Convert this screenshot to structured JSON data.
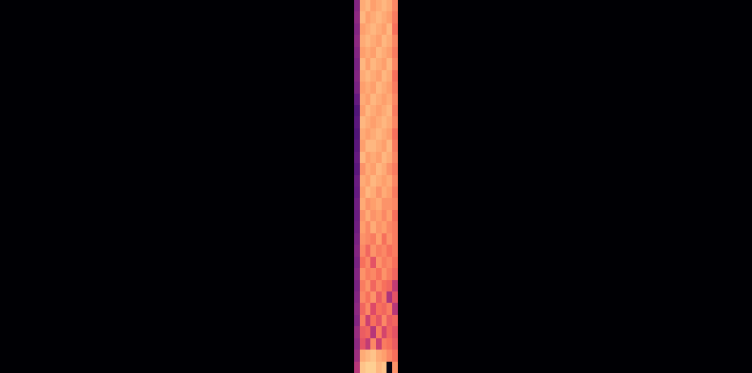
{
  "chart_data": {
    "type": "heatmap",
    "color": "magma",
    "tick_labels": false,
    "grid": false,
    "xlim": [
      0,
      140
    ],
    "ylim": [
      0,
      32
    ],
    "zlim": [
      -80,
      0
    ],
    "x": [
      0,
      66,
      67,
      68,
      69,
      70,
      71,
      72,
      73,
      74,
      140
    ],
    "y": [
      0,
      1,
      2,
      3,
      4,
      5,
      6,
      7,
      8,
      9,
      10,
      11,
      12,
      13,
      14,
      15,
      16,
      17,
      18,
      19,
      20,
      21,
      22,
      23,
      24,
      25,
      26,
      27,
      28,
      29,
      30,
      31,
      32
    ],
    "cells": [
      [
        -80,
        -40,
        -10,
        -8,
        -8,
        -12,
        -10,
        -78,
        -18,
        -80
      ],
      [
        -80,
        -45,
        -14,
        -12,
        -10,
        -14,
        -16,
        -20,
        -24,
        -80
      ],
      [
        -80,
        -48,
        -30,
        -38,
        -20,
        -36,
        -22,
        -24,
        -28,
        -80
      ],
      [
        -80,
        -46,
        -28,
        -26,
        -40,
        -22,
        -34,
        -26,
        -30,
        -80
      ],
      [
        -80,
        -50,
        -22,
        -36,
        -24,
        -30,
        -20,
        -28,
        -26,
        -80
      ],
      [
        -80,
        -48,
        -26,
        -20,
        -32,
        -24,
        -26,
        -22,
        -40,
        -80
      ],
      [
        -80,
        -50,
        -20,
        -24,
        -18,
        -28,
        -22,
        -42,
        -30,
        -80
      ],
      [
        -80,
        -52,
        -22,
        -18,
        -26,
        -20,
        -24,
        -26,
        -38,
        -80
      ],
      [
        -80,
        -50,
        -18,
        -22,
        -20,
        -24,
        -18,
        -22,
        -26,
        -80
      ],
      [
        -80,
        -52,
        -24,
        -20,
        -30,
        -18,
        -22,
        -20,
        -24,
        -80
      ],
      [
        -80,
        -50,
        -20,
        -26,
        -18,
        -22,
        -20,
        -24,
        -22,
        -80
      ],
      [
        -80,
        -52,
        -18,
        -20,
        -22,
        -16,
        -24,
        -18,
        -22,
        -80
      ],
      [
        -80,
        -54,
        -16,
        -20,
        -14,
        -18,
        -16,
        -20,
        -22,
        -80
      ],
      [
        -80,
        -55,
        -18,
        -14,
        -18,
        -16,
        -20,
        -16,
        -24,
        -80
      ],
      [
        -80,
        -54,
        -14,
        -18,
        -16,
        -14,
        -18,
        -18,
        -20,
        -80
      ],
      [
        -80,
        -56,
        -16,
        -12,
        -14,
        -18,
        -14,
        -16,
        -22,
        -80
      ],
      [
        -80,
        -55,
        -14,
        -16,
        -12,
        -14,
        -16,
        -14,
        -20,
        -80
      ],
      [
        -80,
        -58,
        -18,
        -14,
        -16,
        -12,
        -14,
        -18,
        -22,
        -80
      ],
      [
        -80,
        -56,
        -12,
        -16,
        -14,
        -16,
        -12,
        -14,
        -20,
        -80
      ],
      [
        -80,
        -58,
        -16,
        -12,
        -12,
        -14,
        -16,
        -12,
        -22,
        -80
      ],
      [
        -80,
        -60,
        -14,
        -16,
        -14,
        -12,
        -14,
        -16,
        -24,
        -80
      ],
      [
        -80,
        -58,
        -12,
        -14,
        -16,
        -14,
        -12,
        -14,
        -20,
        -80
      ],
      [
        -80,
        -60,
        -16,
        -12,
        -14,
        -16,
        -14,
        -12,
        -22,
        -80
      ],
      [
        -80,
        -56,
        -14,
        -16,
        -12,
        -14,
        -16,
        -14,
        -20,
        -80
      ],
      [
        -80,
        -52,
        -16,
        -14,
        -16,
        -12,
        -14,
        -16,
        -22,
        -80
      ],
      [
        -80,
        -50,
        -14,
        -12,
        -14,
        -16,
        -12,
        -14,
        -24,
        -80
      ],
      [
        -80,
        -52,
        -12,
        -16,
        -12,
        -14,
        -16,
        -12,
        -20,
        -80
      ],
      [
        -80,
        -50,
        -16,
        -14,
        -16,
        -12,
        -14,
        -16,
        -22,
        -80
      ],
      [
        -80,
        -48,
        -14,
        -12,
        -14,
        -16,
        -12,
        -14,
        -20,
        -80
      ],
      [
        -80,
        -50,
        -16,
        -14,
        -12,
        -14,
        -16,
        -12,
        -24,
        -80
      ],
      [
        -80,
        -48,
        -12,
        -16,
        -14,
        -12,
        -14,
        -16,
        -22,
        -80
      ],
      [
        -80,
        -50,
        -14,
        -12,
        -16,
        -14,
        -12,
        -14,
        -20,
        -80
      ]
    ]
  }
}
